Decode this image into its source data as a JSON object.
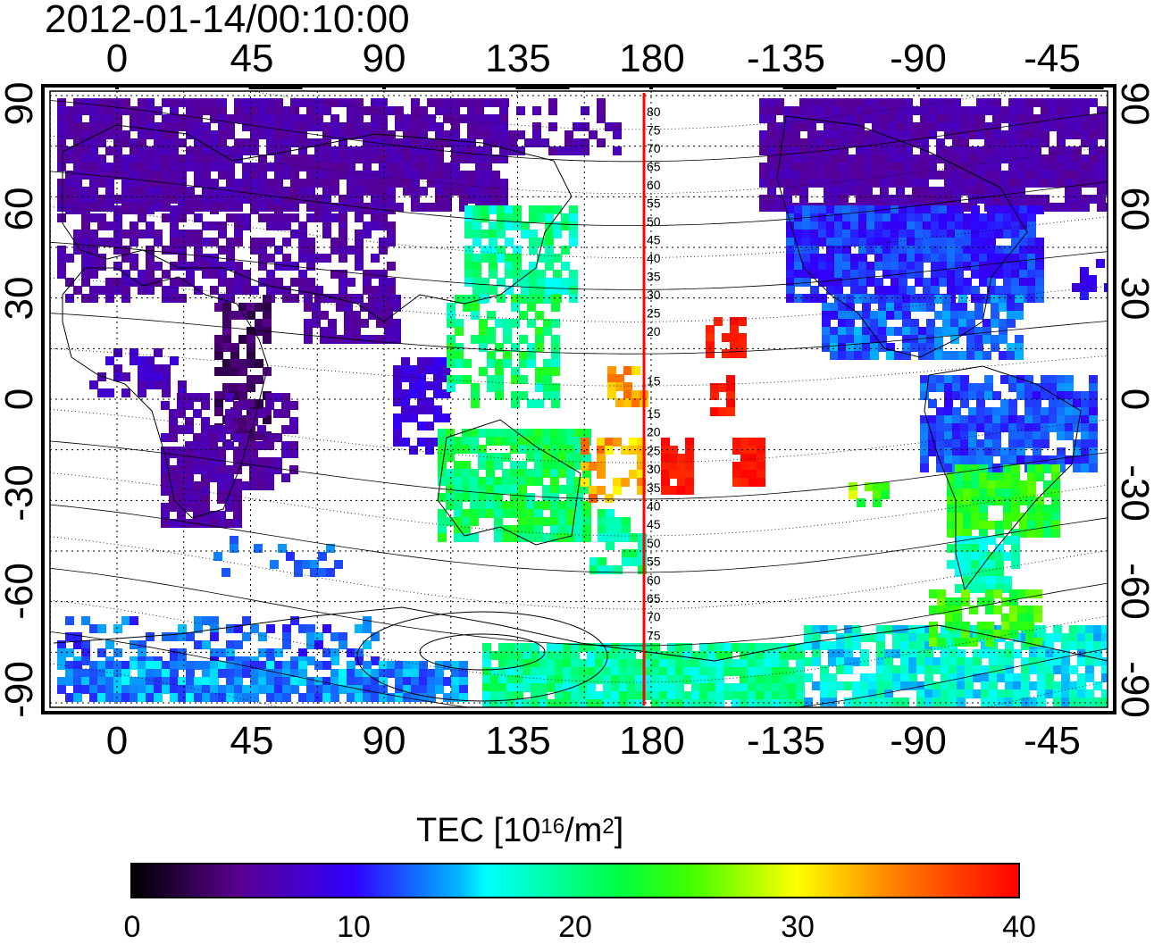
{
  "title": "2012-01-14/00:10:00",
  "axes": {
    "lon_labels": [
      "0",
      "45",
      "90",
      "135",
      "180",
      "-135",
      "-90",
      "-45"
    ],
    "lat_labels": [
      "90",
      "60",
      "30",
      "0",
      "-30",
      "-60",
      "-90"
    ]
  },
  "meridian_labels_north": [
    "80",
    "75",
    "70",
    "65",
    "60",
    "55",
    "50",
    "45",
    "40",
    "35",
    "30",
    "25",
    "20",
    "15"
  ],
  "meridian_labels_south": [
    "15",
    "20",
    "25",
    "30",
    "35",
    "40",
    "45",
    "50",
    "55",
    "60",
    "65",
    "70",
    "75"
  ],
  "colorbar": {
    "title_prefix": "TEC  [10",
    "title_exp1": "16",
    "title_mid": "/m",
    "title_exp2": "2",
    "title_suffix": "]",
    "ticks": [
      "0",
      "10",
      "20",
      "30",
      "40"
    ],
    "min": 0,
    "max": 40
  },
  "colors": {
    "line_180": "#ff0000",
    "frame": "#000000"
  }
}
